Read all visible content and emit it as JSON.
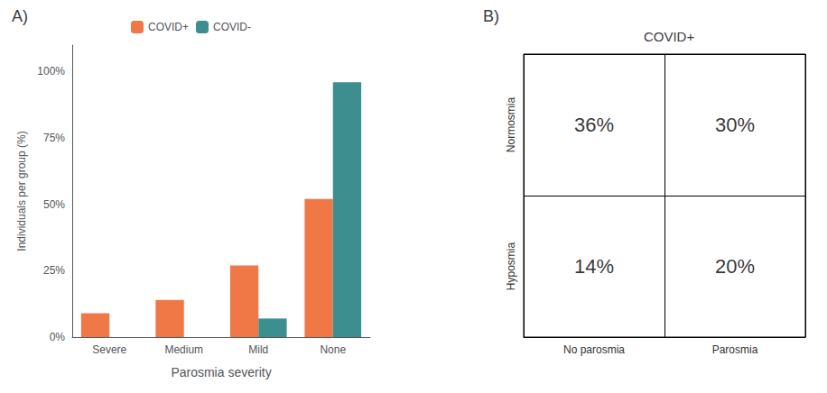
{
  "chart_data": [
    {
      "type": "bar",
      "annotation": "A)",
      "categories": [
        "Severe",
        "Medium",
        "Mild",
        "None"
      ],
      "series": [
        {
          "name": "COVID+",
          "color": "#F07846",
          "values": [
            9,
            14,
            27,
            52
          ]
        },
        {
          "name": "COVID-",
          "color": "#3D8F8F",
          "values": [
            0,
            0,
            7,
            96
          ]
        }
      ],
      "xlabel": "Parosmia severity",
      "ylabel": "Individuals per group (%)",
      "ylim": [
        0,
        110
      ],
      "yticks": [
        {
          "value": 0,
          "label": "0%"
        },
        {
          "value": 25,
          "label": "25%"
        },
        {
          "value": 50,
          "label": "50%"
        },
        {
          "value": 75,
          "label": "75%"
        },
        {
          "value": 100,
          "label": "100%"
        }
      ],
      "grid": false,
      "legend": "upper left"
    },
    {
      "type": "table",
      "annotation": "B)",
      "title": "COVID+",
      "row_labels": [
        "Normosmia",
        "Hyposmia"
      ],
      "col_labels": [
        "No parosmia",
        "Parosmia"
      ],
      "values": [
        [
          36,
          30
        ],
        [
          14,
          20
        ]
      ],
      "value_labels": [
        [
          "36%",
          "30%"
        ],
        [
          "14%",
          "20%"
        ]
      ]
    }
  ]
}
